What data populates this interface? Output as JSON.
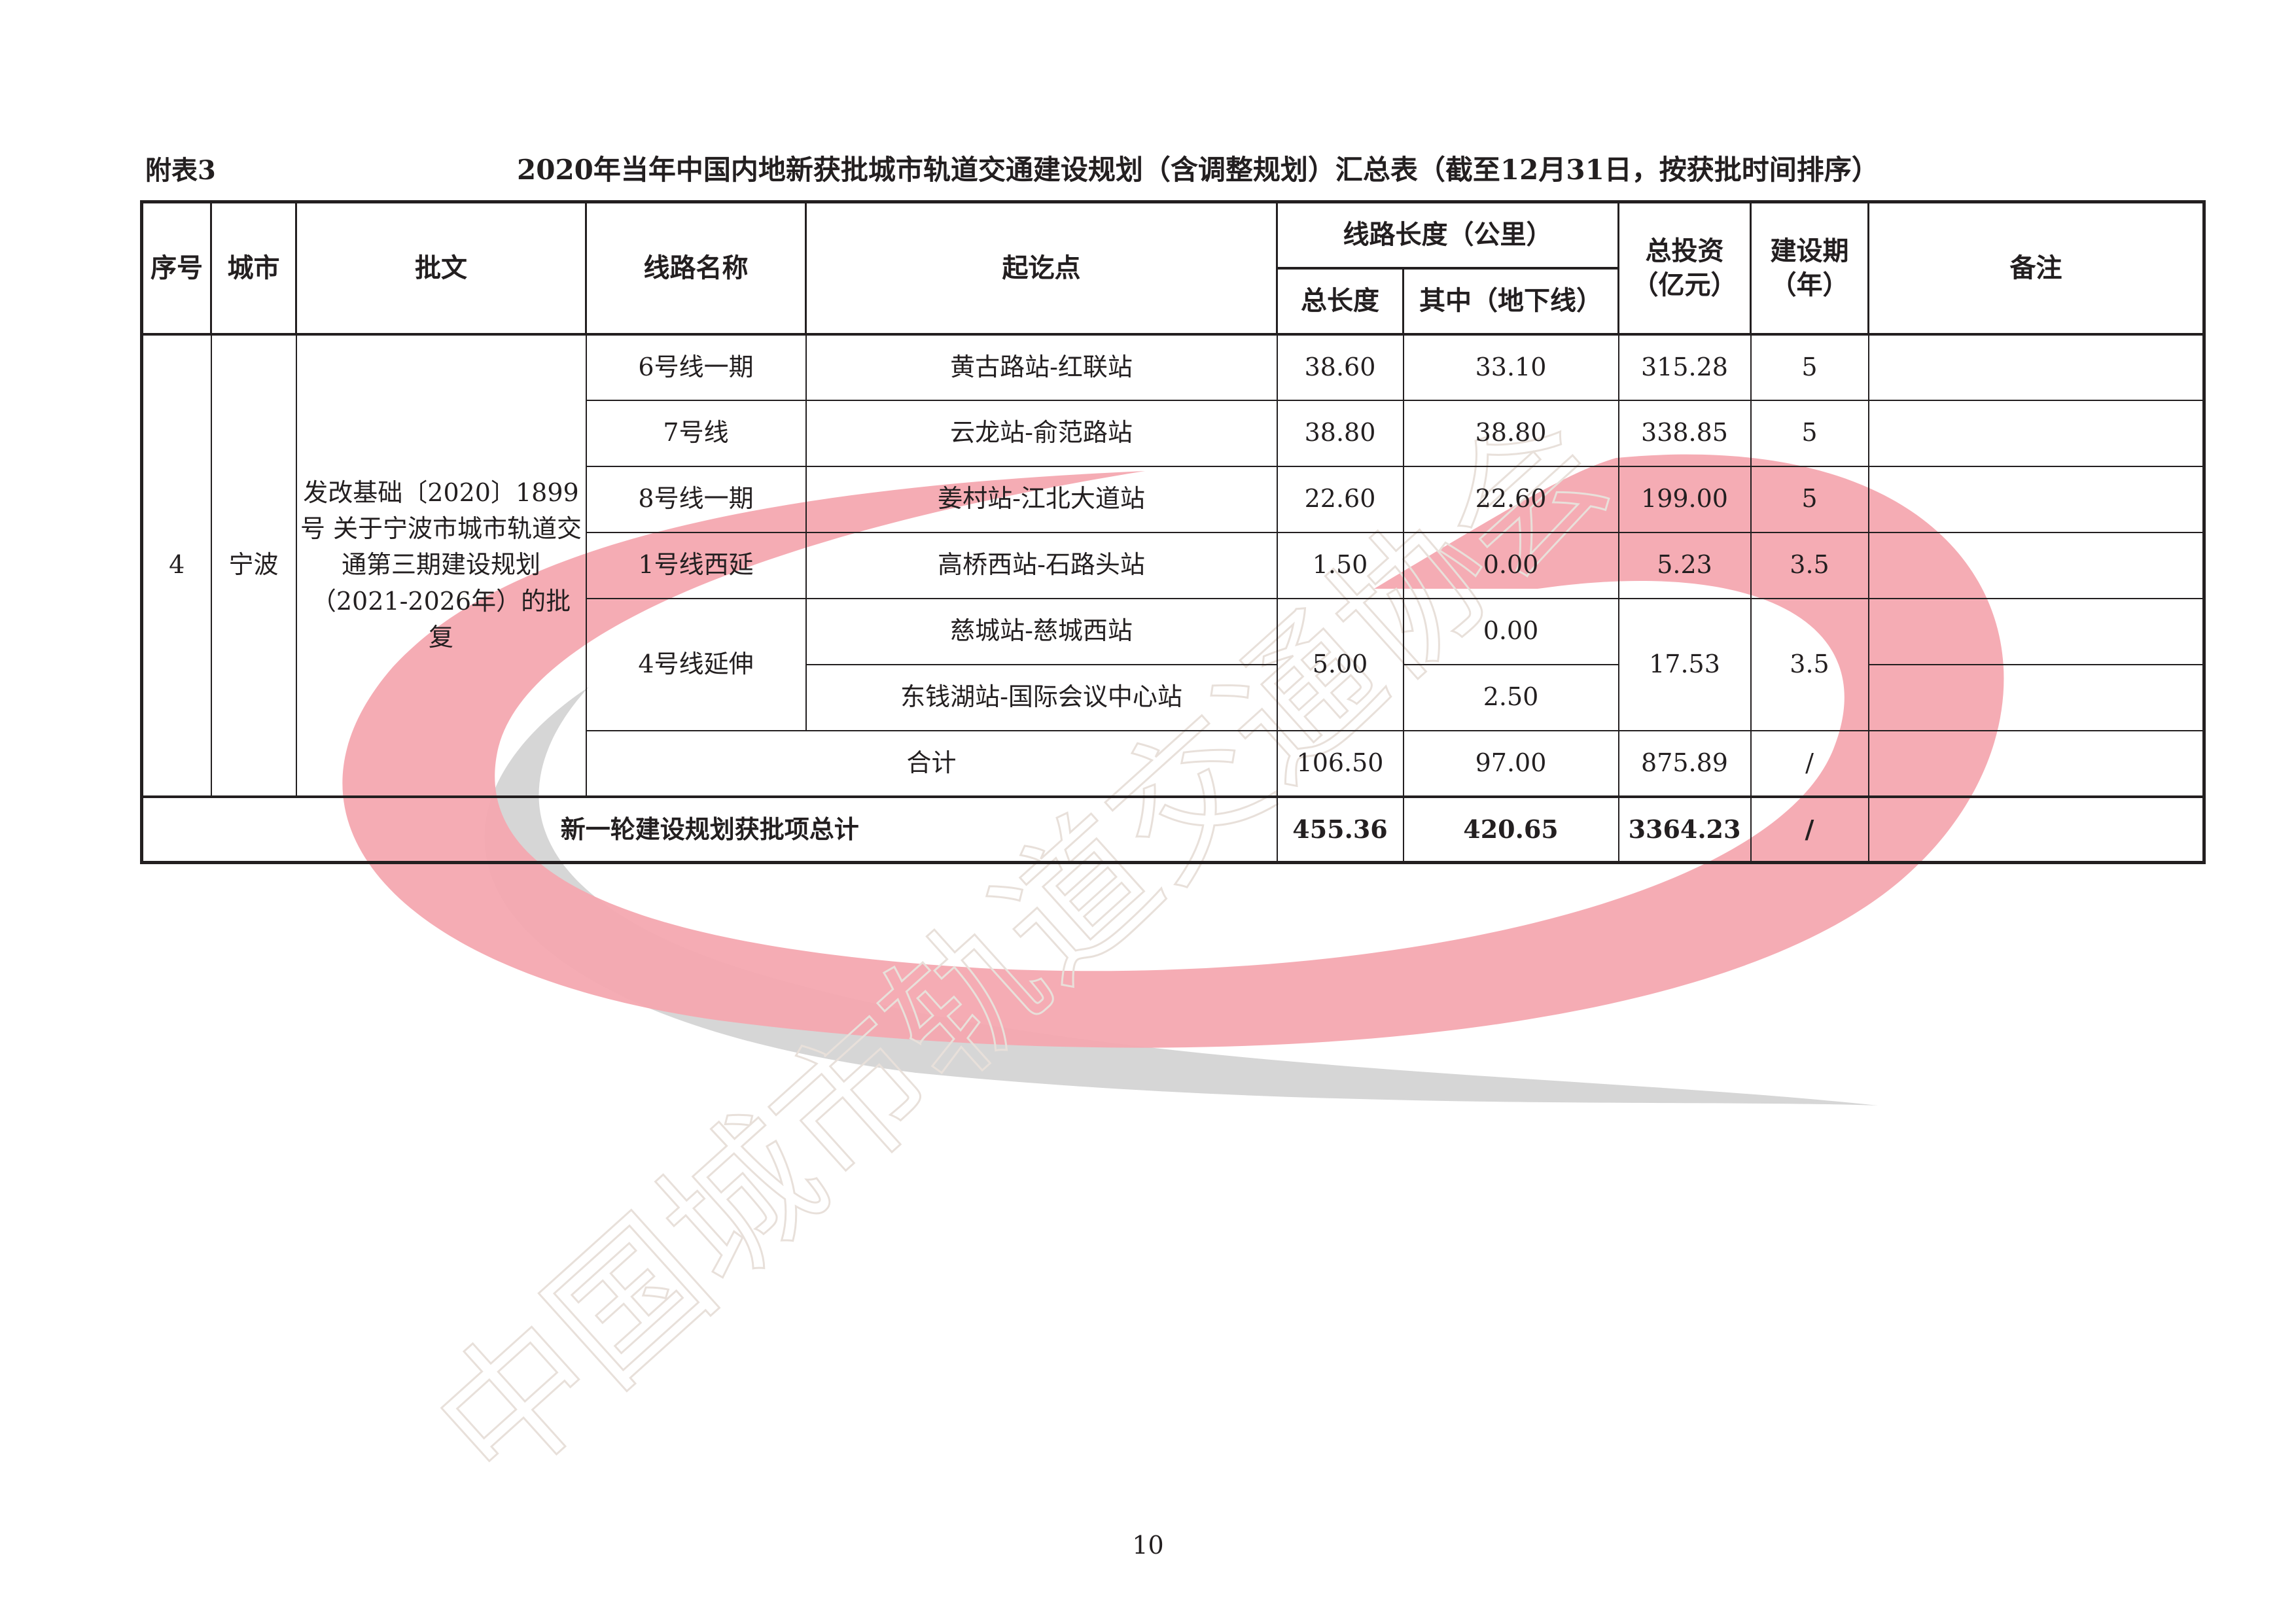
{
  "appendix_label": "附表3",
  "title": "2020年当年中国内地新获批城市轨道交通建设规划（含调整规划）汇总表（截至12月31日，按获批时间排序）",
  "headers": {
    "index": "序号",
    "city": "城市",
    "approval": "批文",
    "line_name": "线路名称",
    "endpoints": "起讫点",
    "length_group": "线路长度（公里）",
    "total_length": "总长度",
    "underground": "其中（地下线）",
    "investment": "总投资（亿元）",
    "period": "建设期（年）",
    "remarks": "备注"
  },
  "group": {
    "index": "4",
    "city": "宁波",
    "approval": "发改基础〔2020〕1899号 关于宁波市城市轨道交通第三期建设规划（2021-2026年）的批复"
  },
  "rows": [
    {
      "line": "6号线一期",
      "endpoints": "黄古路站-红联站",
      "total_length": "38.60",
      "underground": "33.10",
      "investment": "315.28",
      "period": "5",
      "remarks": ""
    },
    {
      "line": "7号线",
      "endpoints": "云龙站-俞范路站",
      "total_length": "38.80",
      "underground": "38.80",
      "investment": "338.85",
      "period": "5",
      "remarks": ""
    },
    {
      "line": "8号线一期",
      "endpoints": "姜村站-江北大道站",
      "total_length": "22.60",
      "underground": "22.60",
      "investment": "199.00",
      "period": "5",
      "remarks": ""
    },
    {
      "line": "1号线西延",
      "endpoints": "高桥西站-石路头站",
      "total_length": "1.50",
      "underground": "0.00",
      "investment": "5.23",
      "period": "3.5",
      "remarks": ""
    }
  ],
  "split_row": {
    "line": "4号线延伸",
    "total_length": "5.00",
    "investment": "17.53",
    "period": "3.5",
    "parts": [
      {
        "endpoints": "慈城站-慈城西站",
        "underground": "0.00",
        "remarks": ""
      },
      {
        "endpoints": "东钱湖站-国际会议中心站",
        "underground": "2.50",
        "remarks": ""
      }
    ]
  },
  "subtotal": {
    "label": "合计",
    "total_length": "106.50",
    "underground": "97.00",
    "investment": "875.89",
    "period": "/",
    "remarks": ""
  },
  "grand_total": {
    "label": "新一轮建设规划获批项总计",
    "total_length": "455.36",
    "underground": "420.65",
    "investment": "3364.23",
    "period": "/",
    "remarks": ""
  },
  "page_number": "10",
  "watermark": {
    "text": "中国城市轨道交通协会",
    "colors": {
      "pink": "#f4a8b0",
      "gray": "#d4d4d4"
    }
  }
}
